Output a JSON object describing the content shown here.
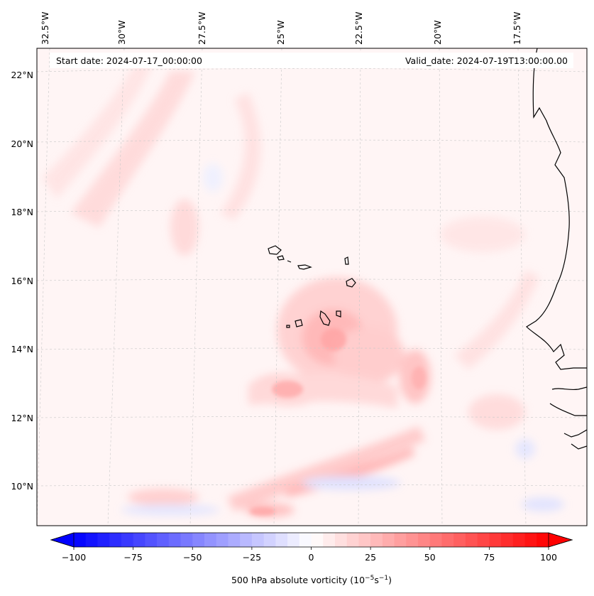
{
  "header": {
    "start_date": "Start date: 2024-07-17_00:00:00",
    "valid_date": "Valid_date: 2024-07-19T13:00:00.00"
  },
  "lon_ticks": [
    {
      "lon": -32.5,
      "label": "32.5°W"
    },
    {
      "lon": -30.0,
      "label": "30°W"
    },
    {
      "lon": -27.5,
      "label": "27.5°W"
    },
    {
      "lon": -25.0,
      "label": "25°W"
    },
    {
      "lon": -22.5,
      "label": "22.5°W"
    },
    {
      "lon": -20.0,
      "label": "20°W"
    },
    {
      "lon": -17.5,
      "label": "17.5°W"
    }
  ],
  "lat_ticks": [
    {
      "lat": 22,
      "label": "22°N"
    },
    {
      "lat": 20,
      "label": "20°N"
    },
    {
      "lat": 18,
      "label": "18°N"
    },
    {
      "lat": 16,
      "label": "16°N"
    },
    {
      "lat": 14,
      "label": "14°N"
    },
    {
      "lat": 12,
      "label": "12°N"
    },
    {
      "lat": 10,
      "label": "10°N"
    }
  ],
  "colorbar": {
    "label": "500 hPa absolute vorticity (10",
    "label_exp1": "−5",
    "label_mid": "s",
    "label_exp2": "−1",
    "label_end": ")",
    "min": -100,
    "max": 100,
    "n_levels": 40,
    "ticks": [
      {
        "value": -100,
        "label": "−100"
      },
      {
        "value": -75,
        "label": "−75"
      },
      {
        "value": -50,
        "label": "−50"
      },
      {
        "value": -25,
        "label": "−25"
      },
      {
        "value": 0,
        "label": "0"
      },
      {
        "value": 25,
        "label": "25"
      },
      {
        "value": 50,
        "label": "50"
      },
      {
        "value": 75,
        "label": "75"
      },
      {
        "value": 100,
        "label": "100"
      }
    ],
    "neg_color": "#0000ff",
    "zero_color": "#ffffff",
    "pos_color": "#ff0000"
  },
  "map": {
    "background_color": "#fff5f5",
    "coastline_color": "#000000",
    "gridline_color": "#cccccc"
  }
}
